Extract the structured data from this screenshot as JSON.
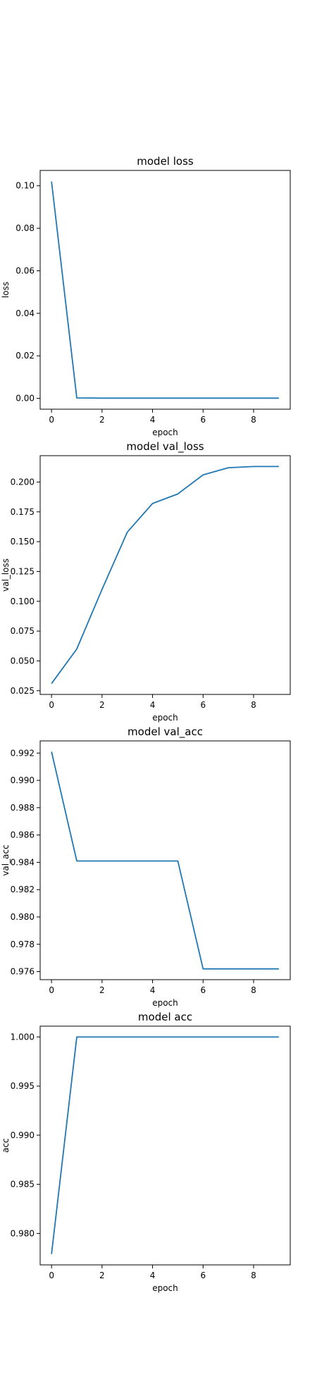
{
  "colors": {
    "line": "#1f77b4",
    "axis": "#000000",
    "background": "#ffffff"
  },
  "chart_data": [
    {
      "type": "line",
      "title": "model loss",
      "xlabel": "epoch",
      "ylabel": "loss",
      "x": [
        0,
        1,
        2,
        3,
        4,
        5,
        6,
        7,
        8,
        9
      ],
      "series": [
        {
          "values": [
            0.102,
            0.0002,
            0.0001,
            0.0001,
            0.0001,
            0.0001,
            0.0001,
            0.0001,
            0.0001,
            0.0001
          ]
        }
      ],
      "xlim": [
        -0.45,
        9.45
      ],
      "ylim": [
        -0.0051,
        0.1072
      ],
      "xticks": [
        0,
        2,
        4,
        6,
        8
      ],
      "yticks": [
        0.0,
        0.02,
        0.04,
        0.06,
        0.08,
        0.1
      ],
      "ytick_labels": [
        "0.00",
        "0.02",
        "0.04",
        "0.06",
        "0.08",
        "0.10"
      ],
      "grid": false,
      "legend": "none"
    },
    {
      "type": "line",
      "title": "model val_loss",
      "xlabel": "epoch",
      "ylabel": "val_loss",
      "x": [
        0,
        1,
        2,
        3,
        4,
        5,
        6,
        7,
        8,
        9
      ],
      "series": [
        {
          "values": [
            0.031,
            0.06,
            0.11,
            0.158,
            0.182,
            0.19,
            0.206,
            0.212,
            0.213,
            0.213
          ]
        }
      ],
      "xlim": [
        -0.45,
        9.45
      ],
      "ylim": [
        0.0219,
        0.2221
      ],
      "xticks": [
        0,
        2,
        4,
        6,
        8
      ],
      "yticks": [
        0.025,
        0.05,
        0.075,
        0.1,
        0.125,
        0.15,
        0.175,
        0.2
      ],
      "ytick_labels": [
        "0.025",
        "0.050",
        "0.075",
        "0.100",
        "0.125",
        "0.150",
        "0.175",
        "0.200"
      ],
      "grid": false,
      "legend": "none"
    },
    {
      "type": "line",
      "title": "model val_acc",
      "xlabel": "epoch",
      "ylabel": "val_acc",
      "x": [
        0,
        1,
        2,
        3,
        4,
        5,
        6,
        7,
        8,
        9
      ],
      "series": [
        {
          "values": [
            0.9921,
            0.9841,
            0.9841,
            0.9841,
            0.9841,
            0.9841,
            0.9762,
            0.9762,
            0.9762,
            0.9762
          ]
        }
      ],
      "xlim": [
        -0.45,
        9.45
      ],
      "ylim": [
        0.97541,
        0.99289
      ],
      "xticks": [
        0,
        2,
        4,
        6,
        8
      ],
      "yticks": [
        0.976,
        0.978,
        0.98,
        0.982,
        0.984,
        0.986,
        0.988,
        0.99,
        0.992
      ],
      "ytick_labels": [
        "0.976",
        "0.978",
        "0.980",
        "0.982",
        "0.984",
        "0.986",
        "0.988",
        "0.990",
        "0.992"
      ],
      "grid": false,
      "legend": "none"
    },
    {
      "type": "line",
      "title": "model acc",
      "xlabel": "epoch",
      "ylabel": "acc",
      "x": [
        0,
        1,
        2,
        3,
        4,
        5,
        6,
        7,
        8,
        9
      ],
      "series": [
        {
          "values": [
            0.9779,
            1.0,
            1.0,
            1.0,
            1.0,
            1.0,
            1.0,
            1.0,
            1.0,
            1.0
          ]
        }
      ],
      "xlim": [
        -0.45,
        9.45
      ],
      "ylim": [
        0.9768,
        1.0011
      ],
      "xticks": [
        0,
        2,
        4,
        6,
        8
      ],
      "yticks": [
        0.98,
        0.985,
        0.99,
        0.995,
        1.0
      ],
      "ytick_labels": [
        "0.980",
        "0.985",
        "0.990",
        "0.995",
        "1.000"
      ],
      "grid": false,
      "legend": "none"
    }
  ]
}
